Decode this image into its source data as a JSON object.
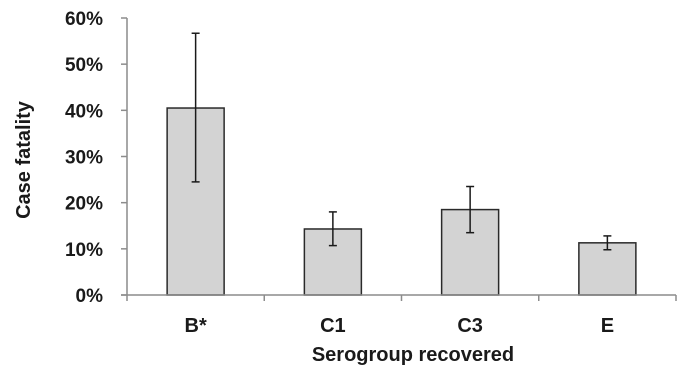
{
  "chart_data": {
    "type": "bar",
    "categories": [
      "B*",
      "C1",
      "C3",
      "E"
    ],
    "values": [
      0.405,
      0.143,
      0.185,
      0.113
    ],
    "error_low": [
      0.245,
      0.107,
      0.135,
      0.098
    ],
    "error_high": [
      0.567,
      0.18,
      0.235,
      0.128
    ],
    "ylim": [
      0,
      0.6
    ],
    "yticks": [
      0,
      0.1,
      0.2,
      0.3,
      0.4,
      0.5,
      0.6
    ],
    "ytick_labels": [
      "0%",
      "10%",
      "20%",
      "30%",
      "40%",
      "50%",
      "60%"
    ],
    "xlabel": "Serogroup recovered",
    "ylabel": "Case fatality",
    "title": "",
    "grid": false,
    "colors": {
      "bar_fill": "#d3d3d3",
      "bar_stroke": "#2a2a2a",
      "axis": "#8c8c8c",
      "error_bar": "#1a1a1a"
    }
  }
}
